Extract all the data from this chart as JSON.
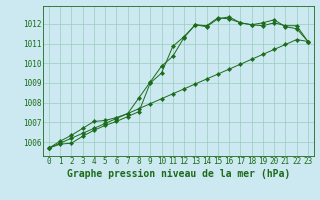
{
  "title": "Graphe pression niveau de la mer (hPa)",
  "background_color": "#cce8f0",
  "grid_color": "#99ccbb",
  "line_color": "#1a6b1a",
  "marker_color": "#1a6b1a",
  "xlim": [
    -0.5,
    23.5
  ],
  "ylim": [
    1005.3,
    1012.9
  ],
  "yticks": [
    1006,
    1007,
    1008,
    1009,
    1010,
    1011,
    1012
  ],
  "xticks": [
    0,
    1,
    2,
    3,
    4,
    5,
    6,
    7,
    8,
    9,
    10,
    11,
    12,
    13,
    14,
    15,
    16,
    17,
    18,
    19,
    20,
    21,
    22,
    23
  ],
  "series1": [
    1005.7,
    1005.9,
    1005.95,
    1006.3,
    1006.6,
    1006.85,
    1007.05,
    1007.3,
    1007.55,
    1009.0,
    1009.5,
    1010.85,
    1011.35,
    1011.95,
    1011.85,
    1012.25,
    1012.35,
    1012.05,
    1011.95,
    1012.05,
    1012.2,
    1011.85,
    1011.75,
    1011.1
  ],
  "series2": [
    1005.7,
    1006.05,
    1006.35,
    1006.7,
    1007.05,
    1007.1,
    1007.25,
    1007.45,
    1008.25,
    1009.05,
    1009.85,
    1010.35,
    1011.3,
    1011.95,
    1011.9,
    1012.3,
    1012.25,
    1012.05,
    1011.95,
    1011.9,
    1012.05,
    1011.9,
    1011.9,
    1011.1
  ],
  "series3": [
    1005.7,
    1005.95,
    1006.2,
    1006.45,
    1006.7,
    1006.95,
    1007.2,
    1007.45,
    1007.7,
    1007.95,
    1008.2,
    1008.45,
    1008.7,
    1008.95,
    1009.2,
    1009.45,
    1009.7,
    1009.95,
    1010.2,
    1010.45,
    1010.7,
    1010.95,
    1011.2,
    1011.1
  ],
  "title_fontsize": 7,
  "tick_fontsize": 5.5,
  "xlabel_fontsize": 7
}
